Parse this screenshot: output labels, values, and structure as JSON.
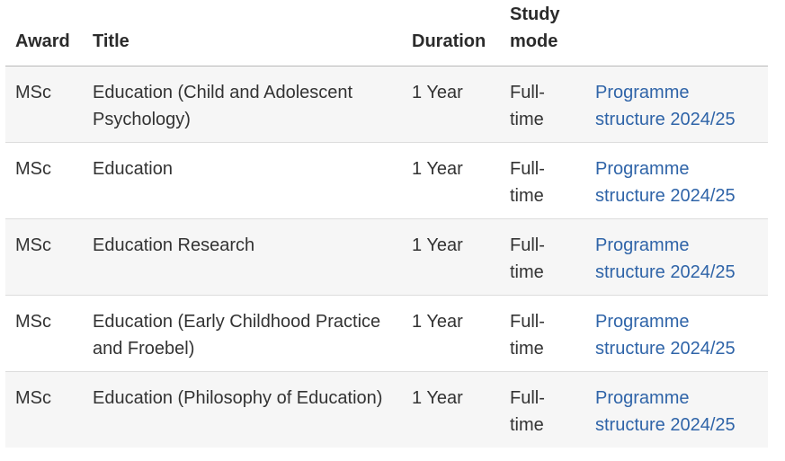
{
  "table": {
    "headers": {
      "award": "Award",
      "title": "Title",
      "duration": "Duration",
      "mode": "Study mode"
    },
    "rows": [
      {
        "award": "MSc",
        "title": "Education (Child and Adolescent Psychology)",
        "duration": "1 Year",
        "mode": "Full-time",
        "link": "Programme structure 2024/25"
      },
      {
        "award": "MSc",
        "title": "Education",
        "duration": "1 Year",
        "mode": "Full-time",
        "link": "Programme structure 2024/25"
      },
      {
        "award": "MSc",
        "title": "Education Research",
        "duration": "1 Year",
        "mode": "Full-time",
        "link": "Programme structure 2024/25"
      },
      {
        "award": "MSc",
        "title": "Education (Early Childhood Practice and Froebel)",
        "duration": "1 Year",
        "mode": "Full-time",
        "link": "Programme structure 2024/25"
      },
      {
        "award": "MSc",
        "title": "Education (Philosophy of Education)",
        "duration": "1 Year",
        "mode": "Full-time",
        "link": "Programme structure 2024/25"
      }
    ]
  },
  "colors": {
    "link": "#2f64a8",
    "row_stripe": "#f6f6f6",
    "text": "#333333"
  }
}
